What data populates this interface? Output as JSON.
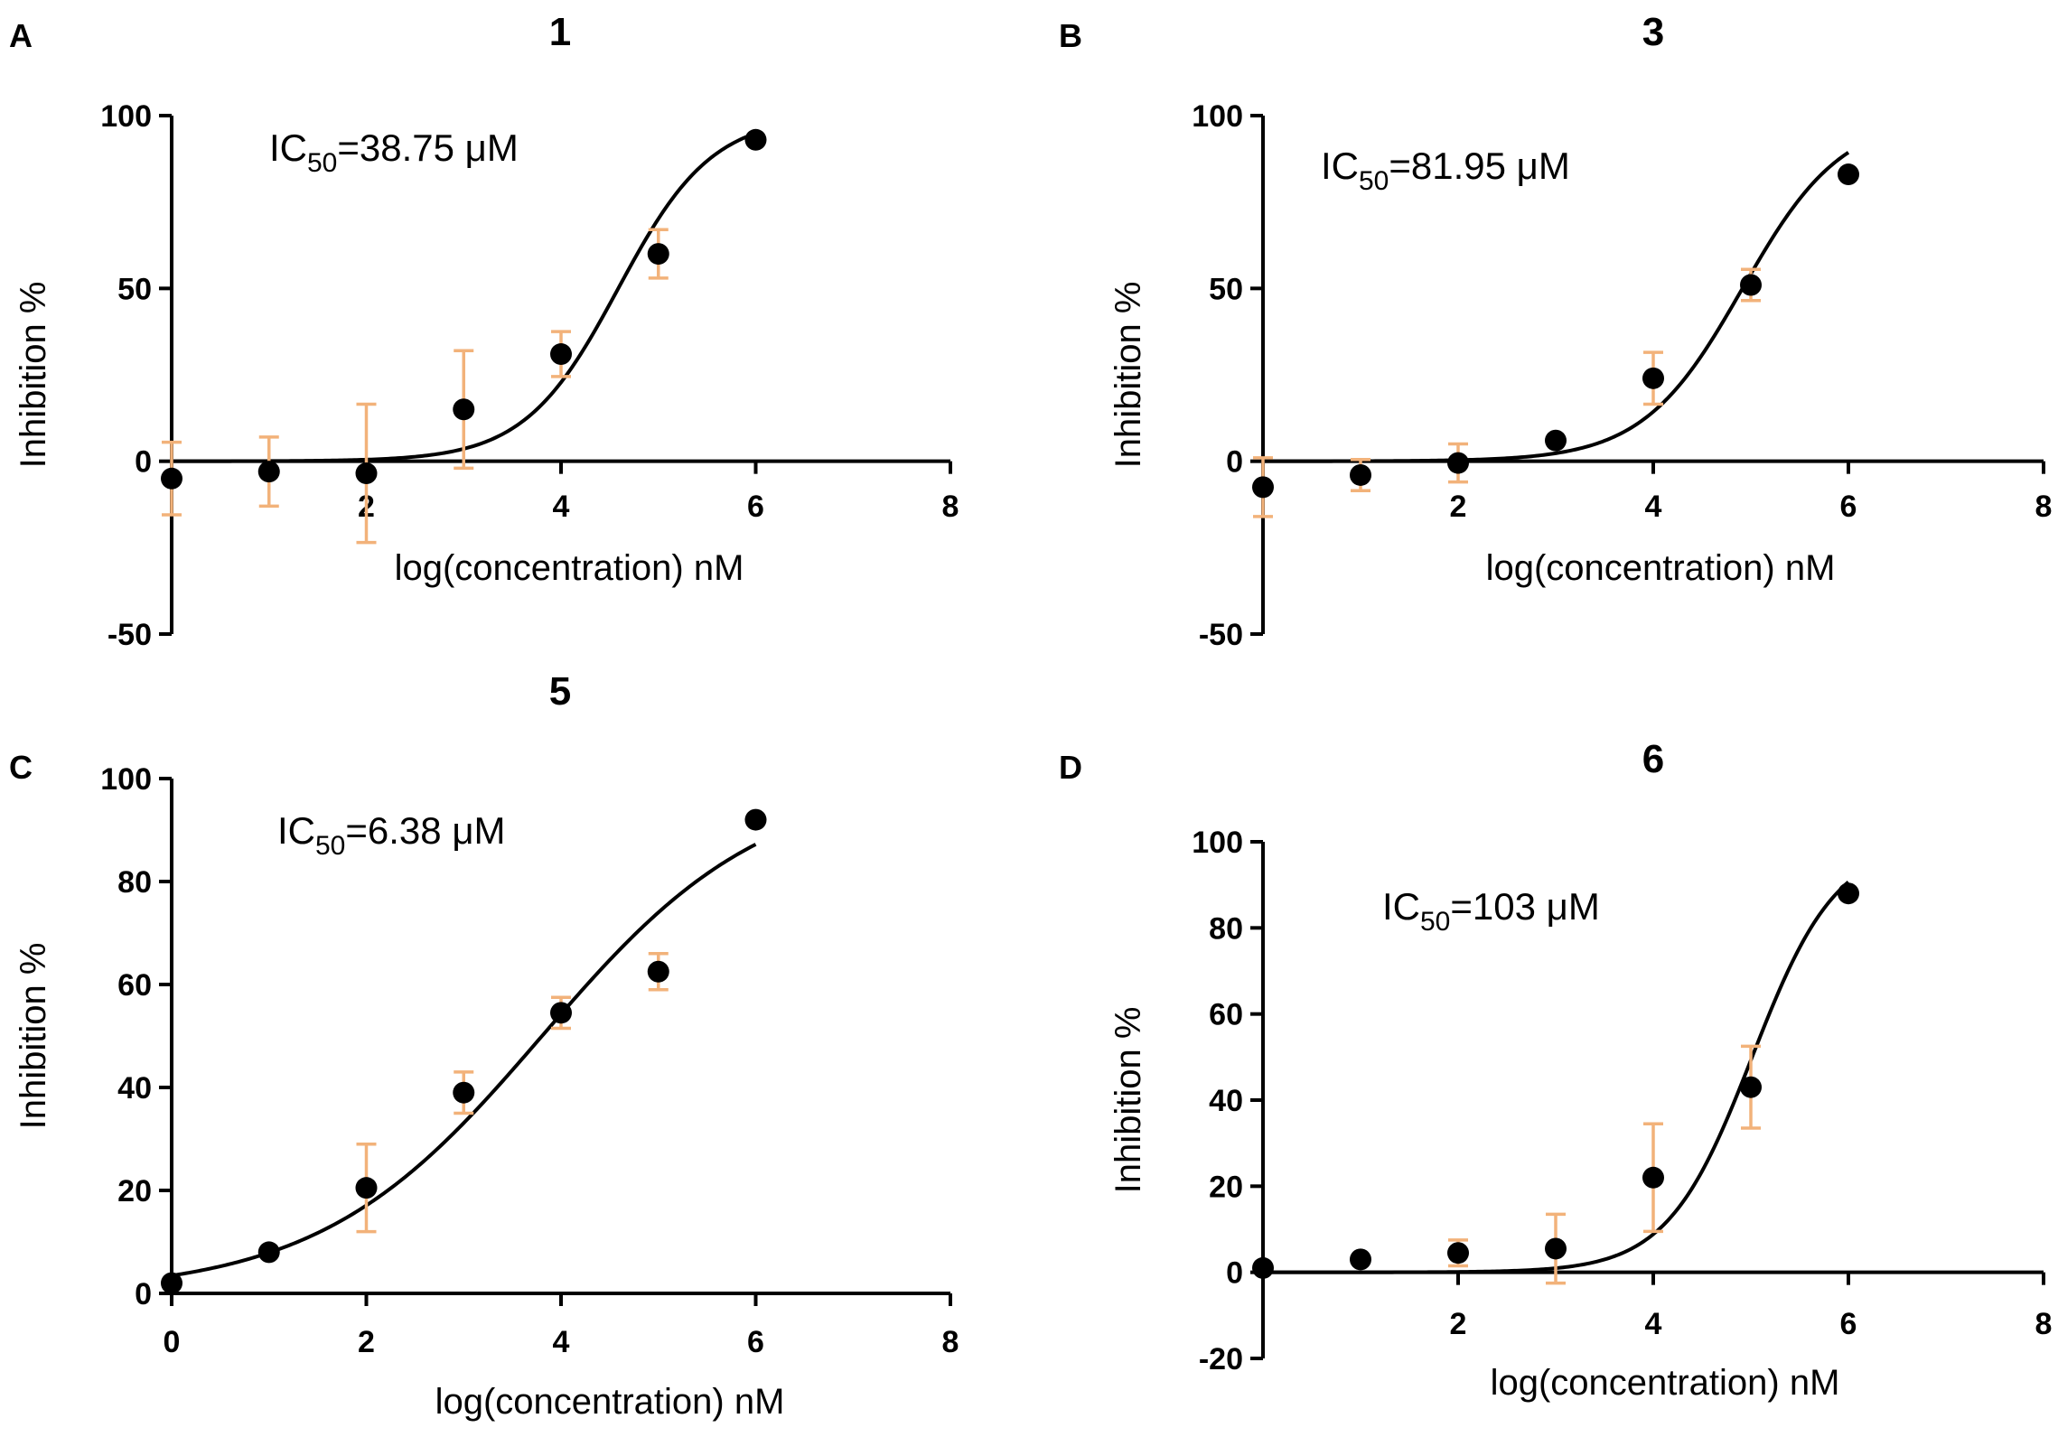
{
  "figure": {
    "colors": {
      "errorbar": "#f2b27a",
      "ink": "#000000",
      "background": "#ffffff"
    }
  },
  "chart_data": [
    {
      "type": "scatter",
      "panel": "A",
      "title": "1",
      "xlabel": "log(concentration)  nM",
      "ylabel": "Inhibition %",
      "annotation": {
        "prefix": "IC",
        "sub": "50",
        "suffix": "=38.75 μM"
      },
      "xlim": [
        0,
        8
      ],
      "ylim": [
        -50,
        100
      ],
      "xticks": [
        2,
        4,
        6,
        8
      ],
      "yticks": [
        -50,
        0,
        50,
        100
      ],
      "grid": false,
      "legend": "none",
      "x": [
        0,
        1,
        2,
        3,
        4,
        5,
        6
      ],
      "y": [
        -5,
        -3,
        -3.5,
        15,
        31,
        60,
        93
      ],
      "yerr": [
        10.5,
        10,
        20,
        17,
        6.5,
        7,
        0
      ],
      "fit": {
        "model": "four-parameter logistic",
        "bottom": 0,
        "top": 100,
        "logEC50": 4.588,
        "hill": 0.9
      }
    },
    {
      "type": "scatter",
      "panel": "B",
      "title": "3",
      "xlabel": "log(concentration)  nM",
      "ylabel": "Inhibition %",
      "annotation": {
        "prefix": "IC",
        "sub": "50",
        "suffix": "=81.95 μM"
      },
      "xlim": [
        0,
        8
      ],
      "ylim": [
        -50,
        100
      ],
      "xticks": [
        2,
        4,
        6,
        8
      ],
      "yticks": [
        -50,
        0,
        50,
        100
      ],
      "grid": false,
      "legend": "none",
      "x": [
        0,
        1,
        2,
        3,
        4,
        5,
        6
      ],
      "y": [
        -7.5,
        -4,
        -0.5,
        6,
        24,
        51,
        83
      ],
      "yerr": [
        8.5,
        4.5,
        5.5,
        0,
        7.5,
        4.5,
        0
      ],
      "fit": {
        "model": "four-parameter logistic",
        "bottom": 0,
        "top": 100,
        "logEC50": 4.914,
        "hill": 0.85
      }
    },
    {
      "type": "scatter",
      "panel": "C",
      "title": "5",
      "xlabel": "log(concentration)  nM",
      "ylabel": "Inhibition %",
      "annotation": {
        "prefix": "IC",
        "sub": "50",
        "suffix": "=6.38 μM"
      },
      "xlim": [
        0,
        8
      ],
      "ylim": [
        0,
        100
      ],
      "xticks": [
        0,
        2,
        4,
        6,
        8
      ],
      "yticks": [
        0,
        20,
        40,
        60,
        80,
        100
      ],
      "grid": false,
      "legend": "none",
      "x": [
        0,
        1,
        2,
        3,
        4,
        5,
        6
      ],
      "y": [
        2,
        8,
        20.5,
        39,
        54.5,
        62.5,
        92
      ],
      "yerr": [
        0,
        0,
        8.5,
        4,
        3,
        3.5,
        0
      ],
      "fit": {
        "model": "four-parameter logistic",
        "bottom": 0,
        "top": 100,
        "logEC50": 3.805,
        "hill": 0.38
      }
    },
    {
      "type": "scatter",
      "panel": "D",
      "title": "6",
      "xlabel": "log(concentration)  nM",
      "ylabel": "Inhibition %",
      "annotation": {
        "prefix": "IC",
        "sub": "50",
        "suffix": "=103 μM"
      },
      "xlim": [
        0,
        8
      ],
      "ylim": [
        -20,
        100
      ],
      "xticks": [
        2,
        4,
        6,
        8
      ],
      "yticks": [
        -20,
        0,
        20,
        40,
        60,
        80,
        100
      ],
      "grid": false,
      "legend": "none",
      "x": [
        0,
        1,
        2,
        3,
        4,
        5,
        6
      ],
      "y": [
        1,
        3,
        4.5,
        5.5,
        22,
        43,
        88
      ],
      "yerr": [
        0,
        0,
        3,
        8,
        12.5,
        9.5,
        0
      ],
      "fit": {
        "model": "four-parameter logistic",
        "bottom": 0,
        "top": 100,
        "logEC50": 5.013,
        "hill": 1.0
      }
    }
  ]
}
